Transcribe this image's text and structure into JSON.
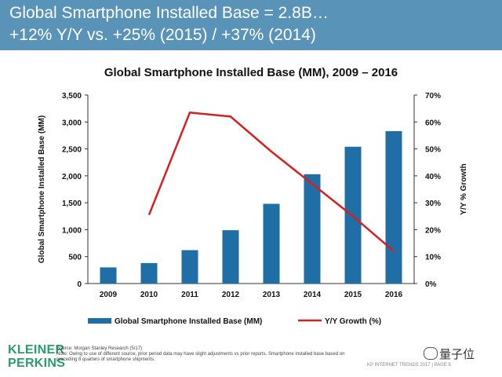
{
  "header": {
    "line1": "Global Smartphone Installed Base = 2.8B…",
    "line2": "+12% Y/Y vs. +25% (2015) / +37% (2014)",
    "bg_color": "#5a93b8"
  },
  "chart_data": {
    "type": "bar",
    "title": "Global Smartphone Installed Base (MM), 2009 – 2016",
    "xlabel": "",
    "ylabel": "Global Smartphone Installed Base (MM)",
    "y2label": "Y/Y % Growth",
    "categories": [
      "2009",
      "2010",
      "2011",
      "2012",
      "2013",
      "2014",
      "2015",
      "2016"
    ],
    "ylim": [
      0,
      3500
    ],
    "y2lim": [
      0,
      70
    ],
    "yticks": [
      "0",
      "500",
      "1,000",
      "1,500",
      "2,000",
      "2,500",
      "3,000",
      "3,500"
    ],
    "y2ticks": [
      "0%",
      "10%",
      "20%",
      "30%",
      "40%",
      "50%",
      "60%",
      "70%"
    ],
    "series": [
      {
        "name": "Global Smartphone Installed Base (MM)",
        "type": "bar",
        "axis": "left",
        "color": "#1f6fa6",
        "values": [
          300,
          380,
          620,
          990,
          1480,
          2030,
          2540,
          2830
        ]
      },
      {
        "name": "Y/Y Growth (%)",
        "type": "line",
        "axis": "right",
        "color": "#d62020",
        "values": [
          null,
          25.5,
          63.5,
          62,
          49,
          37,
          25,
          12
        ]
      }
    ],
    "legend_position": "bottom",
    "grid": false
  },
  "footer": {
    "logo_line1": "KLEINER",
    "logo_line2": "PERKINS",
    "source_line1": "Source: Morgan Stanley Research (5/17)",
    "source_line2": "Note: Owing to use of different source, prior period data may have slight adjustments vs prior reports. Smartphone installed base based on",
    "source_line3": "preceding 8 quarters of smartphone shipments.",
    "page_label": "KP INTERNET TRENDS 2017 | PAGE 8",
    "watermark": "量子位"
  }
}
